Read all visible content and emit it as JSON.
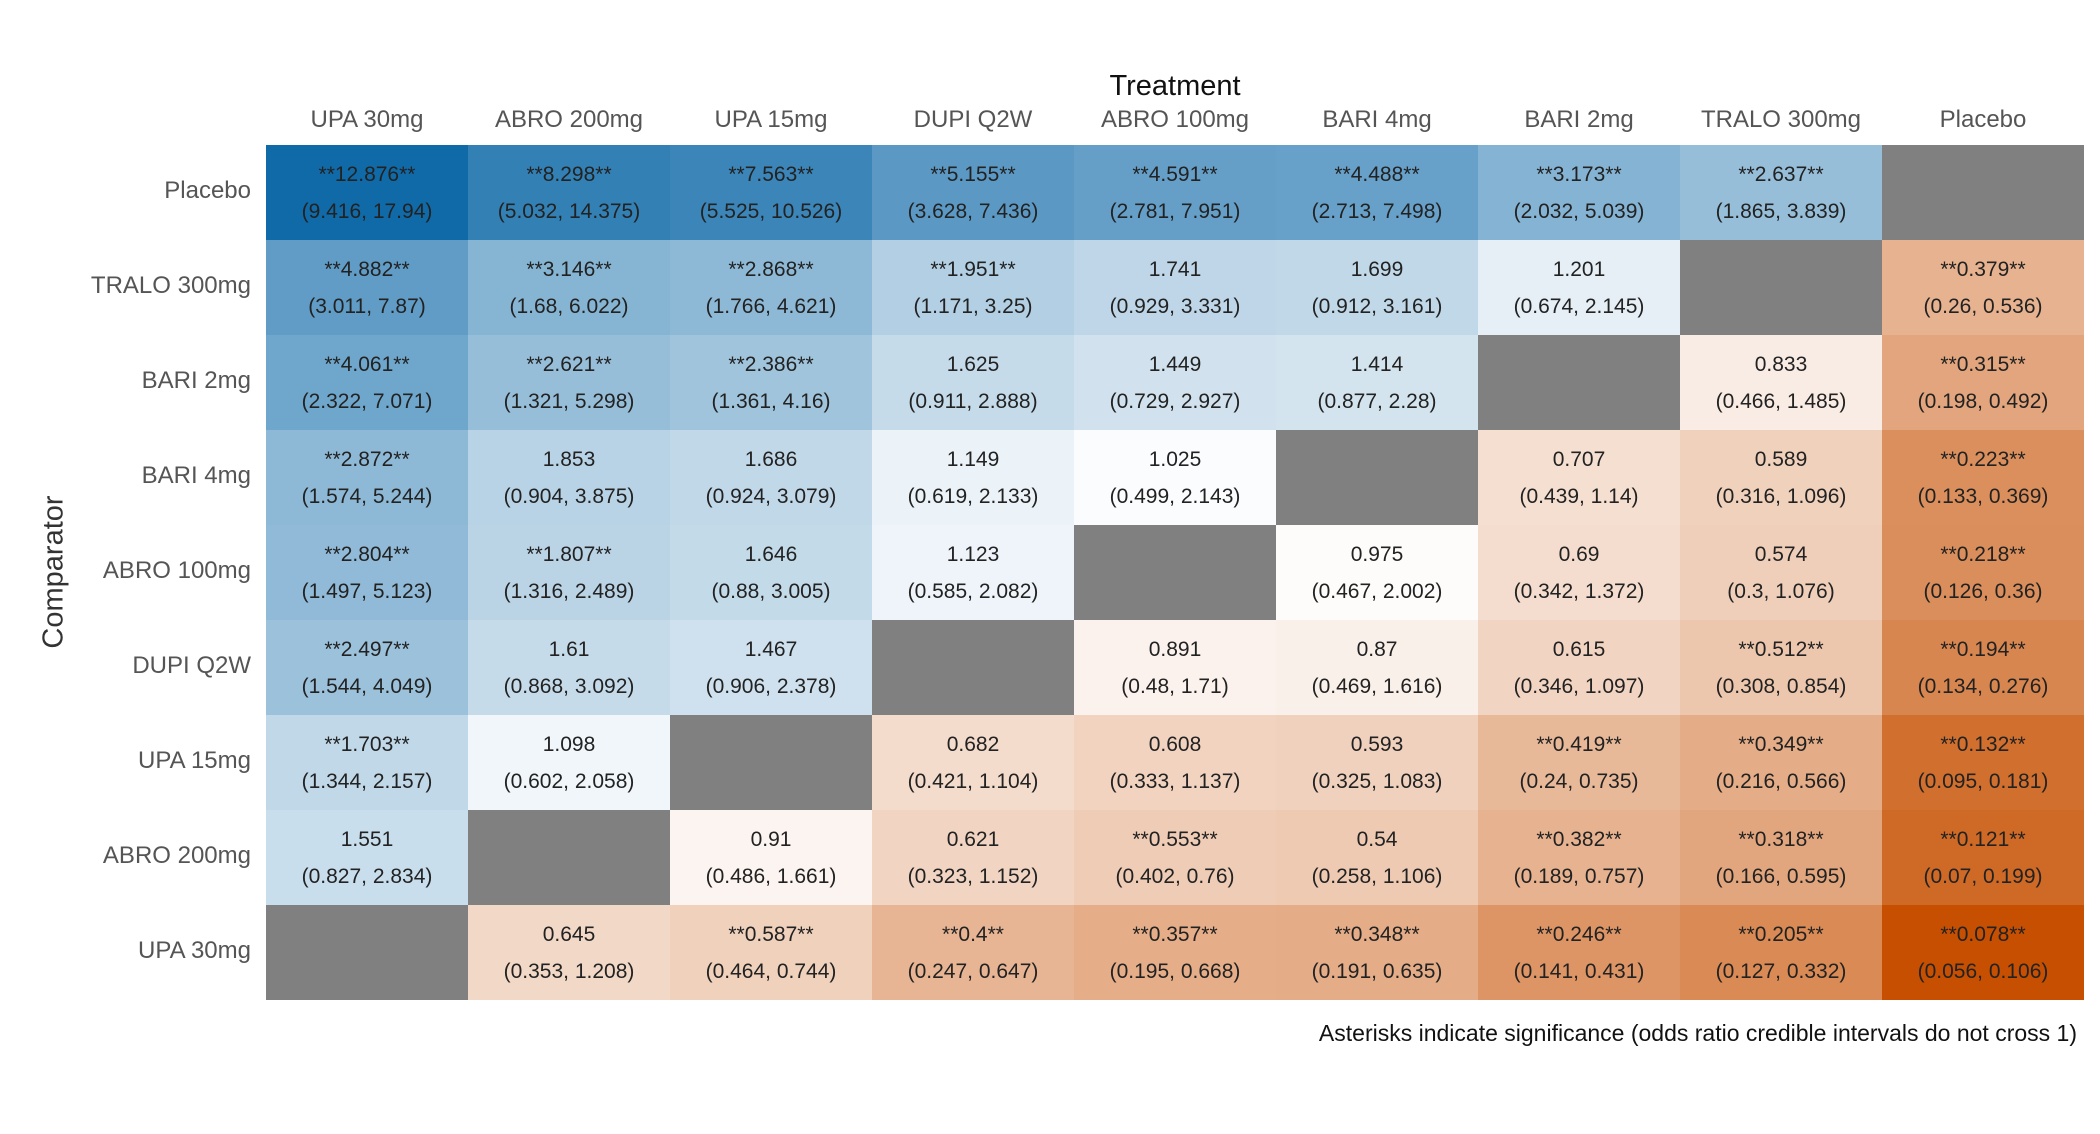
{
  "chart_data": {
    "type": "heatmap",
    "title": "Treatment",
    "xlabel": "Treatment",
    "ylabel": "Comparator",
    "columns": [
      "UPA 30mg",
      "ABRO 200mg",
      "UPA 15mg",
      "DUPI Q2W",
      "ABRO 100mg",
      "BARI 4mg",
      "BARI 2mg",
      "TRALO 300mg",
      "Placebo"
    ],
    "rows": [
      "Placebo",
      "TRALO 300mg",
      "BARI 2mg",
      "BARI 4mg",
      "ABRO 100mg",
      "DUPI Q2W",
      "UPA 15mg",
      "ABRO 200mg",
      "UPA 30mg"
    ],
    "cells": [
      [
        [
          "**12.876**",
          "(9.416, 17.94)"
        ],
        [
          "**8.298**",
          "(5.032, 14.375)"
        ],
        [
          "**7.563**",
          "(5.525, 10.526)"
        ],
        [
          "**5.155**",
          "(3.628, 7.436)"
        ],
        [
          "**4.591**",
          "(2.781, 7.951)"
        ],
        [
          "**4.488**",
          "(2.713, 7.498)"
        ],
        [
          "**3.173**",
          "(2.032, 5.039)"
        ],
        [
          "**2.637**",
          "(1.865, 3.839)"
        ],
        null
      ],
      [
        [
          "**4.882**",
          "(3.011, 7.87)"
        ],
        [
          "**3.146**",
          "(1.68, 6.022)"
        ],
        [
          "**2.868**",
          "(1.766, 4.621)"
        ],
        [
          "**1.951**",
          "(1.171, 3.25)"
        ],
        [
          "1.741",
          "(0.929, 3.331)"
        ],
        [
          "1.699",
          "(0.912, 3.161)"
        ],
        [
          "1.201",
          "(0.674, 2.145)"
        ],
        null,
        [
          "**0.379**",
          "(0.26, 0.536)"
        ]
      ],
      [
        [
          "**4.061**",
          "(2.322, 7.071)"
        ],
        [
          "**2.621**",
          "(1.321, 5.298)"
        ],
        [
          "**2.386**",
          "(1.361, 4.16)"
        ],
        [
          "1.625",
          "(0.911, 2.888)"
        ],
        [
          "1.449",
          "(0.729, 2.927)"
        ],
        [
          "1.414",
          "(0.877, 2.28)"
        ],
        null,
        [
          "0.833",
          "(0.466, 1.485)"
        ],
        [
          "**0.315**",
          "(0.198, 0.492)"
        ]
      ],
      [
        [
          "**2.872**",
          "(1.574, 5.244)"
        ],
        [
          "1.853",
          "(0.904, 3.875)"
        ],
        [
          "1.686",
          "(0.924, 3.079)"
        ],
        [
          "1.149",
          "(0.619, 2.133)"
        ],
        [
          "1.025",
          "(0.499, 2.143)"
        ],
        null,
        [
          "0.707",
          "(0.439, 1.14)"
        ],
        [
          "0.589",
          "(0.316, 1.096)"
        ],
        [
          "**0.223**",
          "(0.133, 0.369)"
        ]
      ],
      [
        [
          "**2.804**",
          "(1.497, 5.123)"
        ],
        [
          "**1.807**",
          "(1.316, 2.489)"
        ],
        [
          "1.646",
          "(0.88, 3.005)"
        ],
        [
          "1.123",
          "(0.585, 2.082)"
        ],
        null,
        [
          "0.975",
          "(0.467, 2.002)"
        ],
        [
          "0.69",
          "(0.342, 1.372)"
        ],
        [
          "0.574",
          "(0.3, 1.076)"
        ],
        [
          "**0.218**",
          "(0.126, 0.36)"
        ]
      ],
      [
        [
          "**2.497**",
          "(1.544, 4.049)"
        ],
        [
          "1.61",
          "(0.868, 3.092)"
        ],
        [
          "1.467",
          "(0.906, 2.378)"
        ],
        null,
        [
          "0.891",
          "(0.48, 1.71)"
        ],
        [
          "0.87",
          "(0.469, 1.616)"
        ],
        [
          "0.615",
          "(0.346, 1.097)"
        ],
        [
          "**0.512**",
          "(0.308, 0.854)"
        ],
        [
          "**0.194**",
          "(0.134, 0.276)"
        ]
      ],
      [
        [
          "**1.703**",
          "(1.344, 2.157)"
        ],
        [
          "1.098",
          "(0.602, 2.058)"
        ],
        null,
        [
          "0.682",
          "(0.421, 1.104)"
        ],
        [
          "0.608",
          "(0.333, 1.137)"
        ],
        [
          "0.593",
          "(0.325, 1.083)"
        ],
        [
          "**0.419**",
          "(0.24, 0.735)"
        ],
        [
          "**0.349**",
          "(0.216, 0.566)"
        ],
        [
          "**0.132**",
          "(0.095, 0.181)"
        ]
      ],
      [
        [
          "1.551",
          "(0.827, 2.834)"
        ],
        null,
        [
          "0.91",
          "(0.486, 1.661)"
        ],
        [
          "0.621",
          "(0.323, 1.152)"
        ],
        [
          "**0.553**",
          "(0.402, 0.76)"
        ],
        [
          "0.54",
          "(0.258, 1.106)"
        ],
        [
          "**0.382**",
          "(0.189, 0.757)"
        ],
        [
          "**0.318**",
          "(0.166, 0.595)"
        ],
        [
          "**0.121**",
          "(0.07, 0.199)"
        ]
      ],
      [
        null,
        [
          "0.645",
          "(0.353, 1.208)"
        ],
        [
          "**0.587**",
          "(0.464, 0.744)"
        ],
        [
          "**0.4**",
          "(0.247, 0.647)"
        ],
        [
          "**0.357**",
          "(0.195, 0.668)"
        ],
        [
          "**0.348**",
          "(0.191, 0.635)"
        ],
        [
          "**0.246**",
          "(0.141, 0.431)"
        ],
        [
          "**0.205**",
          "(0.127, 0.332)"
        ],
        [
          "**0.078**",
          "(0.056, 0.106)"
        ]
      ]
    ],
    "color_scale": {
      "high": "#0f6aa8",
      "mid": "#ffffff",
      "low": "#c64f00",
      "missing": "#808080",
      "scale": "log odds ratio"
    },
    "annotation": "Asterisks indicate significance (odds ratio credible intervals do not cross 1)"
  }
}
